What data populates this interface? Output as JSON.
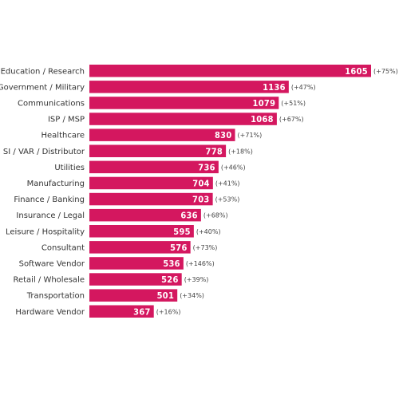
{
  "colors": {
    "bar": "#d4175f",
    "background": "#ffffff",
    "label_text": "#333333",
    "value_text": "#ffffff",
    "change_text": "#444444"
  },
  "chart_data": {
    "type": "bar",
    "orientation": "horizontal",
    "title": "",
    "xlabel": "",
    "ylabel": "",
    "grid": false,
    "xlim": [
      0,
      1605
    ],
    "categories": [
      "Education / Research",
      "Government / Military",
      "Communications",
      "ISP / MSP",
      "Healthcare",
      "SI / VAR / Distributor",
      "Utilities",
      "Manufacturing",
      "Finance / Banking",
      "Insurance / Legal",
      "Leisure / Hospitality",
      "Consultant",
      "Software Vendor",
      "Retail / Wholesale",
      "Transportation",
      "Hardware Vendor"
    ],
    "values": [
      1605,
      1136,
      1079,
      1068,
      830,
      778,
      736,
      704,
      703,
      636,
      595,
      576,
      536,
      526,
      501,
      367
    ],
    "value_labels": [
      "1605",
      "1136",
      "1079",
      "1068",
      "830",
      "778",
      "736",
      "704",
      "703",
      "636",
      "595",
      "576",
      "536",
      "526",
      "501",
      "367"
    ],
    "change_labels": [
      "(+75%)",
      "(+47%)",
      "(+51%)",
      "(+67%)",
      "(+71%)",
      "(+18%)",
      "(+46%)",
      "(+41%)",
      "(+53%)",
      "(+68%)",
      "(+40%)",
      "(+73%)",
      "(+146%)",
      "(+39%)",
      "(+34%)",
      "(+16%)"
    ]
  }
}
